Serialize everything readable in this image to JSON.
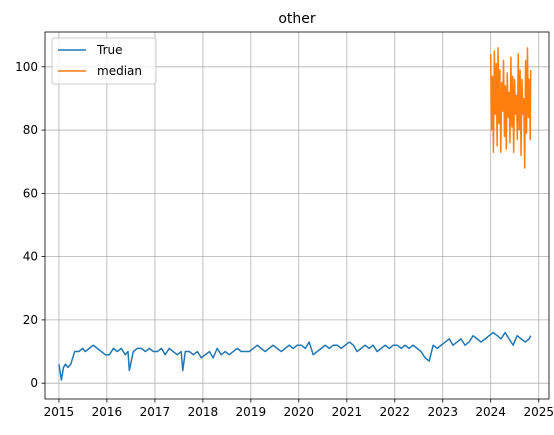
{
  "chart_data": {
    "type": "line",
    "title": "other",
    "xlabel": "",
    "ylabel": "",
    "x_ticks": [
      "2015",
      "2016",
      "2017",
      "2018",
      "2019",
      "2020",
      "2021",
      "2022",
      "2023",
      "2024",
      "2025"
    ],
    "y_ticks": [
      "0",
      "20",
      "40",
      "60",
      "80",
      "100"
    ],
    "xlim": [
      "2014-09-17",
      "2025-03-20"
    ],
    "ylim": [
      -5,
      111
    ],
    "grid": true,
    "legend_position": "top-left",
    "series": [
      {
        "name": "True",
        "color": "#1f77b4",
        "x": [
          "2015-01-01",
          "2015-01-20",
          "2015-02-05",
          "2015-02-20",
          "2015-03-10",
          "2015-04-01",
          "2015-05-01",
          "2015-06-01",
          "2015-07-01",
          "2015-07-20",
          "2015-08-20",
          "2015-09-20",
          "2015-10-20",
          "2015-11-20",
          "2015-12-20",
          "2016-01-20",
          "2016-02-20",
          "2016-03-20",
          "2016-04-20",
          "2016-05-20",
          "2016-06-10",
          "2016-06-20",
          "2016-07-20",
          "2016-08-20",
          "2016-09-20",
          "2016-10-20",
          "2016-11-20",
          "2016-12-20",
          "2017-01-20",
          "2017-02-20",
          "2017-03-20",
          "2017-04-20",
          "2017-05-20",
          "2017-06-20",
          "2017-07-20",
          "2017-08-01",
          "2017-08-20",
          "2017-09-20",
          "2017-10-20",
          "2017-11-20",
          "2017-12-20",
          "2018-01-20",
          "2018-02-20",
          "2018-03-20",
          "2018-04-20",
          "2018-05-20",
          "2018-06-20",
          "2018-07-20",
          "2018-08-20",
          "2018-09-20",
          "2018-10-20",
          "2018-11-20",
          "2018-12-20",
          "2019-01-20",
          "2019-02-20",
          "2019-03-20",
          "2019-04-20",
          "2019-05-20",
          "2019-06-20",
          "2019-07-20",
          "2019-08-20",
          "2019-09-20",
          "2019-10-20",
          "2019-11-20",
          "2019-12-20",
          "2020-01-20",
          "2020-02-20",
          "2020-03-20",
          "2020-04-20",
          "2020-05-20",
          "2020-06-20",
          "2020-07-20",
          "2020-08-20",
          "2020-09-20",
          "2020-10-20",
          "2020-11-20",
          "2020-12-20",
          "2021-01-20",
          "2021-02-20",
          "2021-03-20",
          "2021-04-20",
          "2021-05-20",
          "2021-06-20",
          "2021-07-20",
          "2021-08-20",
          "2021-09-20",
          "2021-10-20",
          "2021-11-20",
          "2021-12-20",
          "2022-01-20",
          "2022-02-20",
          "2022-03-20",
          "2022-04-20",
          "2022-05-20",
          "2022-06-20",
          "2022-07-20",
          "2022-08-20",
          "2022-09-20",
          "2022-10-20",
          "2022-11-20",
          "2022-12-20",
          "2023-01-20",
          "2023-02-20",
          "2023-03-20",
          "2023-04-20",
          "2023-05-20",
          "2023-06-20",
          "2023-07-20",
          "2023-08-20",
          "2023-09-20",
          "2023-10-20",
          "2023-11-20",
          "2023-12-20",
          "2024-01-20",
          "2024-02-20",
          "2024-03-20",
          "2024-04-20",
          "2024-05-20",
          "2024-06-20",
          "2024-07-20",
          "2024-08-20",
          "2024-09-20",
          "2024-10-20",
          "2024-11-01"
        ],
        "y": [
          6,
          1,
          5,
          6,
          5,
          6,
          10,
          10,
          11,
          10,
          11,
          12,
          11,
          10,
          9,
          9,
          11,
          10,
          11,
          9,
          10,
          4,
          10,
          11,
          11,
          10,
          11,
          10,
          10,
          11,
          9,
          11,
          10,
          9,
          10,
          4,
          10,
          10,
          9,
          10,
          8,
          9,
          10,
          8,
          11,
          9,
          10,
          9,
          10,
          11,
          10,
          10,
          10,
          11,
          12,
          11,
          10,
          11,
          12,
          11,
          10,
          11,
          12,
          11,
          12,
          12,
          11,
          13,
          9,
          10,
          11,
          12,
          11,
          12,
          12,
          11,
          12,
          13,
          12,
          10,
          11,
          12,
          11,
          12,
          10,
          11,
          12,
          11,
          12,
          12,
          11,
          12,
          11,
          12,
          11,
          10,
          8,
          7,
          12,
          11,
          12,
          13,
          14,
          12,
          13,
          14,
          12,
          13,
          15,
          14,
          13,
          14,
          15,
          16,
          15,
          14,
          16,
          14,
          12,
          15,
          14,
          13,
          14,
          15
        ]
      },
      {
        "name": "median",
        "color": "#ff7f0e",
        "x": [
          "2024-01-01",
          "2024-01-08",
          "2024-01-15",
          "2024-01-22",
          "2024-01-29",
          "2024-02-05",
          "2024-02-12",
          "2024-02-19",
          "2024-02-26",
          "2024-03-04",
          "2024-03-11",
          "2024-03-18",
          "2024-03-25",
          "2024-04-01",
          "2024-04-08",
          "2024-04-15",
          "2024-04-22",
          "2024-04-29",
          "2024-05-06",
          "2024-05-13",
          "2024-05-20",
          "2024-05-27",
          "2024-06-03",
          "2024-06-10",
          "2024-06-17",
          "2024-06-24",
          "2024-07-01",
          "2024-07-08",
          "2024-07-15",
          "2024-07-22",
          "2024-07-29",
          "2024-08-05",
          "2024-08-12",
          "2024-08-19",
          "2024-08-26",
          "2024-09-02",
          "2024-09-09",
          "2024-09-16",
          "2024-09-23",
          "2024-09-30",
          "2024-10-07",
          "2024-10-14",
          "2024-10-21",
          "2024-10-28",
          "2024-11-01"
        ],
        "y": [
          104,
          80,
          97,
          73,
          105,
          85,
          101,
          75,
          106,
          82,
          99,
          73,
          95,
          86,
          102,
          78,
          94,
          74,
          98,
          84,
          92,
          76,
          103,
          81,
          97,
          73,
          96,
          85,
          91,
          77,
          104,
          80,
          99,
          72,
          96,
          85,
          90,
          68,
          102,
          79,
          106,
          84,
          96,
          77,
          99
        ]
      }
    ]
  }
}
